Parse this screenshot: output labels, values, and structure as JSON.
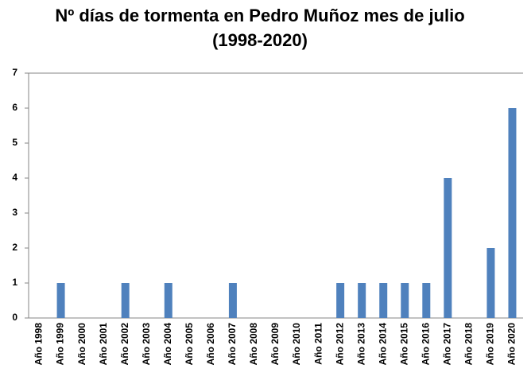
{
  "chart_data": {
    "type": "bar",
    "title": "Nº días de tormenta en Pedro Muñoz mes de julio (1998-2020)",
    "categories": [
      "Año 1998",
      "Año 1999",
      "Año 2000",
      "Año 2001",
      "Año 2002",
      "Año 2003",
      "Año 2004",
      "Año 2005",
      "Año 2006",
      "Año 2007",
      "Año 2008",
      "Año 2009",
      "Año 2010",
      "Año 2011",
      "Año 2012",
      "Año 2013",
      "Año 2014",
      "Año 2015",
      "Año 2016",
      "Año 2017",
      "Año 2018",
      "Año 2019",
      "Año 2020"
    ],
    "values": [
      0,
      1,
      0,
      0,
      1,
      0,
      1,
      0,
      0,
      1,
      0,
      0,
      0,
      0,
      1,
      1,
      1,
      1,
      1,
      4,
      0,
      2,
      6
    ],
    "color": "#4f81bd",
    "ylim": [
      0,
      7
    ],
    "yticks": [
      0,
      1,
      2,
      3,
      4,
      5,
      6,
      7
    ],
    "grid": false
  }
}
